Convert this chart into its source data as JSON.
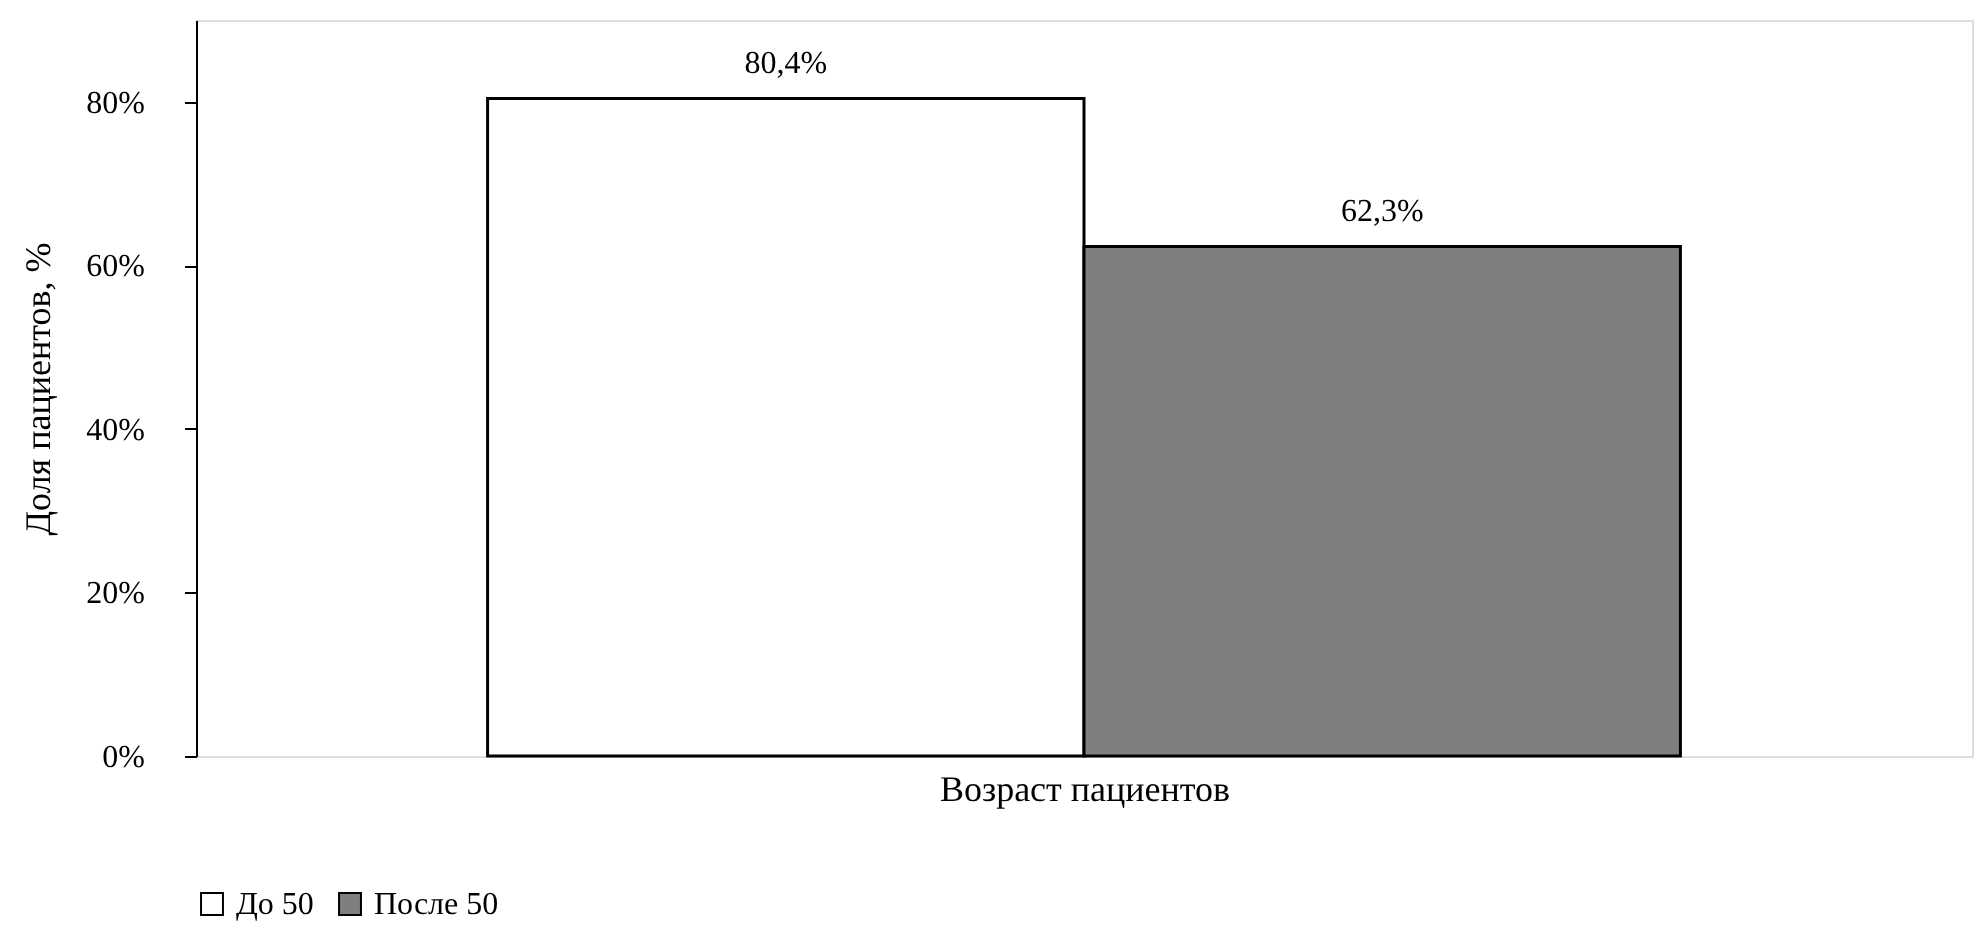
{
  "chart_data": {
    "type": "bar",
    "categories": [
      null
    ],
    "xlabel": "Возраст пациентов",
    "ylabel": "Доля пациентов, %",
    "series": [
      {
        "name": "До 50",
        "color": "#ffffff",
        "values": [
          80.4
        ],
        "value_labels": [
          "80,4%"
        ]
      },
      {
        "name": "После 50",
        "color": "#7f7f7f",
        "values": [
          62.3
        ],
        "value_labels": [
          "62,3%"
        ]
      }
    ],
    "ylim": [
      0,
      90
    ],
    "yticks": [
      {
        "value": 0,
        "label": "0%"
      },
      {
        "value": 20,
        "label": "20%"
      },
      {
        "value": 40,
        "label": "40%"
      },
      {
        "value": 60,
        "label": "60%"
      },
      {
        "value": 80,
        "label": "80%"
      }
    ],
    "grid": false,
    "legend": "bottom",
    "tick_labels": "y"
  }
}
